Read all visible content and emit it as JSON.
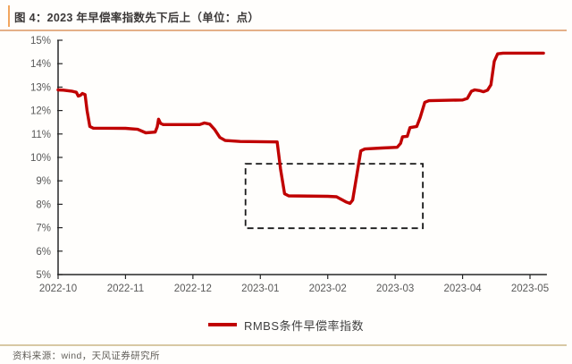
{
  "figure": {
    "title": "图 4：2023 年早偿率指数先下后上（单位：点）",
    "source": "资料来源：wind，天风证券研究所"
  },
  "colors": {
    "line": "#c00000",
    "axis": "#262626",
    "tick_label": "#595959",
    "title_text": "#3b3838",
    "title_rule": "#e4b088",
    "bottom_rule": "#d8c8a4",
    "highlight_box": "#1a1a1a"
  },
  "chart_data": {
    "type": "line",
    "title": "图 4：2023 年早偿率指数先下后上（单位：点）",
    "grid": false,
    "legend_position": "bottom",
    "legend": [
      {
        "name": "RMBS条件早偿率指数",
        "color": "#c00000"
      }
    ],
    "x_axis": {
      "tick_labels": [
        "2022-10",
        "2022-11",
        "2022-12",
        "2023-01",
        "2023-02",
        "2023-03",
        "2023-04",
        "2023-05"
      ],
      "range_months": [
        0,
        7.25
      ]
    },
    "y_axis": {
      "ticks": [
        5,
        6,
        7,
        8,
        9,
        10,
        11,
        12,
        13,
        14,
        15
      ],
      "tick_suffix": "%",
      "range": [
        5,
        15
      ]
    },
    "series": [
      {
        "name": "RMBS条件早偿率指数",
        "color": "#c00000",
        "points_month_value": [
          [
            0.0,
            12.88
          ],
          [
            0.08,
            12.87
          ],
          [
            0.2,
            12.83
          ],
          [
            0.27,
            12.78
          ],
          [
            0.3,
            12.62
          ],
          [
            0.33,
            12.65
          ],
          [
            0.36,
            12.73
          ],
          [
            0.4,
            12.68
          ],
          [
            0.43,
            12.0
          ],
          [
            0.47,
            11.32
          ],
          [
            0.52,
            11.25
          ],
          [
            1.0,
            11.24
          ],
          [
            1.18,
            11.2
          ],
          [
            1.3,
            11.05
          ],
          [
            1.44,
            11.08
          ],
          [
            1.47,
            11.3
          ],
          [
            1.49,
            11.63
          ],
          [
            1.52,
            11.45
          ],
          [
            1.56,
            11.4
          ],
          [
            2.1,
            11.4
          ],
          [
            2.17,
            11.47
          ],
          [
            2.25,
            11.42
          ],
          [
            2.32,
            11.2
          ],
          [
            2.4,
            10.85
          ],
          [
            2.48,
            10.72
          ],
          [
            2.7,
            10.68
          ],
          [
            3.25,
            10.66
          ],
          [
            3.3,
            9.5
          ],
          [
            3.36,
            8.45
          ],
          [
            3.42,
            8.36
          ],
          [
            4.0,
            8.34
          ],
          [
            4.13,
            8.32
          ],
          [
            4.27,
            8.1
          ],
          [
            4.33,
            8.04
          ],
          [
            4.37,
            8.18
          ],
          [
            4.44,
            9.4
          ],
          [
            4.49,
            10.28
          ],
          [
            4.55,
            10.36
          ],
          [
            4.8,
            10.4
          ],
          [
            5.03,
            10.43
          ],
          [
            5.08,
            10.6
          ],
          [
            5.11,
            10.88
          ],
          [
            5.18,
            10.9
          ],
          [
            5.22,
            11.27
          ],
          [
            5.32,
            11.32
          ],
          [
            5.37,
            11.7
          ],
          [
            5.44,
            12.35
          ],
          [
            5.5,
            12.42
          ],
          [
            6.0,
            12.45
          ],
          [
            6.07,
            12.52
          ],
          [
            6.13,
            12.82
          ],
          [
            6.18,
            12.88
          ],
          [
            6.25,
            12.85
          ],
          [
            6.31,
            12.8
          ],
          [
            6.37,
            12.87
          ],
          [
            6.42,
            13.1
          ],
          [
            6.47,
            14.1
          ],
          [
            6.52,
            14.42
          ],
          [
            6.6,
            14.45
          ],
          [
            7.2,
            14.45
          ]
        ]
      }
    ],
    "annotations": [
      {
        "type": "dashed-box",
        "x0_month": 2.78,
        "x1_month": 5.41,
        "y0_value": 6.98,
        "y1_value": 9.73
      }
    ]
  }
}
